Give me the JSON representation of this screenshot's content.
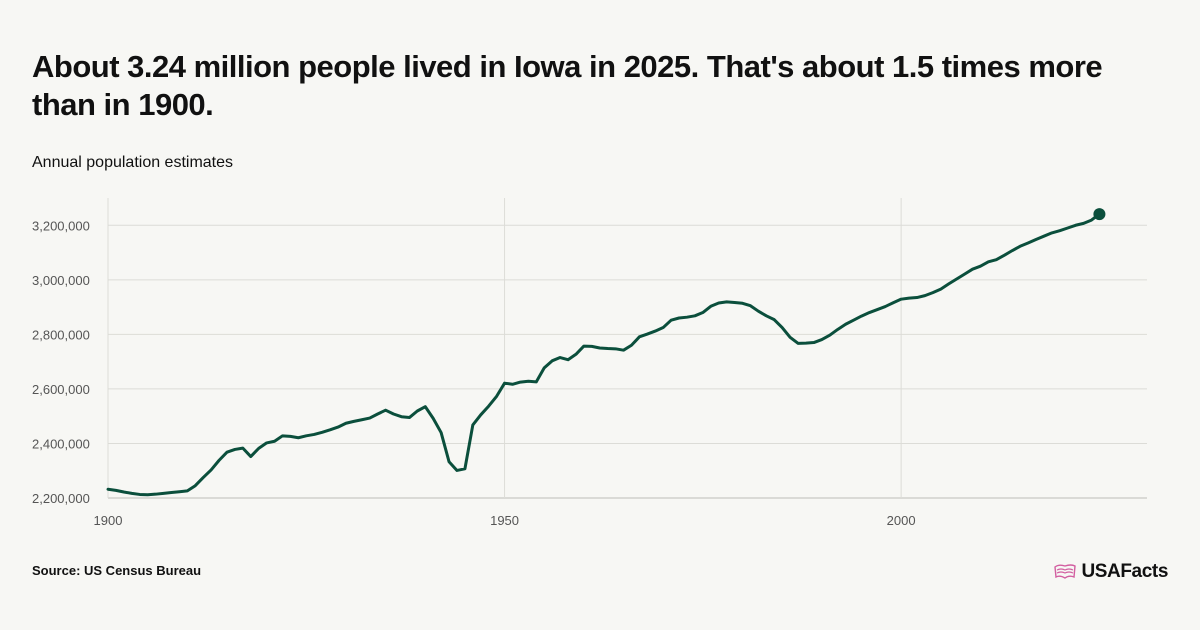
{
  "header": {
    "title": "About 3.24 million people lived in Iowa in 2025. That's about 1.5 times more than in 1900.",
    "subtitle": "Annual population estimates"
  },
  "footer": {
    "source": "Source: US Census Bureau",
    "brand": "USAFacts"
  },
  "colors": {
    "line": "#0b4f3c",
    "grid": "#dcdcd7",
    "background": "#f7f7f4",
    "brand_accent": "#d25ea0"
  },
  "chart_data": {
    "type": "line",
    "title": "About 3.24 million people lived in Iowa in 2025. That's about 1.5 times more than in 1900.",
    "subtitle": "Annual population estimates",
    "xlabel": "",
    "ylabel": "",
    "xlim": [
      1900,
      2031
    ],
    "ylim": [
      2200000,
      3300000
    ],
    "x_ticks": [
      1900,
      1950,
      2000
    ],
    "x_tick_labels": [
      "1900",
      "1950",
      "2000"
    ],
    "y_ticks": [
      2200000,
      2400000,
      2600000,
      2800000,
      3000000,
      3200000
    ],
    "y_tick_labels": [
      "2,200,000",
      "2,400,000",
      "2,600,000",
      "2,800,000",
      "3,000,000",
      "3,200,000"
    ],
    "grid": true,
    "series": [
      {
        "x": [
          1900,
          1901,
          1902,
          1903,
          1904,
          1905,
          1906,
          1907,
          1908,
          1909,
          1910,
          1911,
          1912,
          1913,
          1914,
          1915,
          1916,
          1917,
          1918,
          1919,
          1920,
          1921,
          1922,
          1923,
          1924,
          1925,
          1926,
          1927,
          1928,
          1929,
          1930,
          1931,
          1932,
          1933,
          1934,
          1935,
          1936,
          1937,
          1938,
          1939,
          1940,
          1941,
          1942,
          1943,
          1944,
          1945,
          1946,
          1947,
          1948,
          1949,
          1950,
          1951,
          1952,
          1953,
          1954,
          1955,
          1956,
          1957,
          1958,
          1959,
          1960,
          1961,
          1962,
          1963,
          1964,
          1965,
          1966,
          1967,
          1968,
          1969,
          1970,
          1971,
          1972,
          1973,
          1974,
          1975,
          1976,
          1977,
          1978,
          1979,
          1980,
          1981,
          1982,
          1983,
          1984,
          1985,
          1986,
          1987,
          1988,
          1989,
          1990,
          1991,
          1992,
          1993,
          1994,
          1995,
          1996,
          1997,
          1998,
          1999,
          2000,
          2001,
          2002,
          2003,
          2004,
          2005,
          2006,
          2007,
          2008,
          2009,
          2010,
          2011,
          2012,
          2013,
          2014,
          2015,
          2016,
          2017,
          2018,
          2019,
          2020,
          2021,
          2022,
          2023,
          2024,
          2025
        ],
        "values": [
          2232000,
          2228000,
          2222000,
          2217000,
          2213000,
          2212000,
          2214000,
          2217000,
          2220000,
          2223000,
          2226000,
          2245000,
          2275000,
          2303000,
          2338000,
          2368000,
          2378000,
          2383000,
          2352000,
          2382000,
          2402000,
          2408000,
          2428000,
          2426000,
          2421000,
          2428000,
          2433000,
          2441000,
          2450000,
          2460000,
          2474000,
          2481000,
          2487000,
          2493000,
          2508000,
          2522000,
          2508000,
          2498000,
          2495000,
          2519000,
          2535000,
          2492000,
          2440000,
          2333000,
          2301000,
          2307000,
          2468000,
          2505000,
          2537000,
          2573000,
          2621000,
          2617000,
          2625000,
          2628000,
          2626000,
          2677000,
          2703000,
          2715000,
          2707000,
          2727000,
          2757000,
          2756000,
          2750000,
          2748000,
          2747000,
          2742000,
          2760000,
          2791000,
          2801000,
          2812000,
          2825000,
          2852000,
          2860000,
          2863000,
          2868000,
          2880000,
          2903000,
          2915000,
          2919000,
          2917000,
          2914000,
          2905000,
          2885000,
          2868000,
          2854000,
          2825000,
          2789000,
          2767000,
          2768000,
          2770000,
          2781000,
          2797000,
          2818000,
          2837000,
          2852000,
          2867000,
          2880000,
          2891000,
          2902000,
          2916000,
          2929000,
          2933000,
          2935000,
          2942000,
          2953000,
          2966000,
          2985000,
          3003000,
          3021000,
          3039000,
          3050000,
          3066000,
          3074000,
          3090000,
          3107000,
          3123000,
          3135000,
          3148000,
          3160000,
          3172000,
          3180000,
          3190000,
          3200000,
          3207000,
          3219000,
          3241000
        ]
      }
    ],
    "last_point_marker": true
  }
}
